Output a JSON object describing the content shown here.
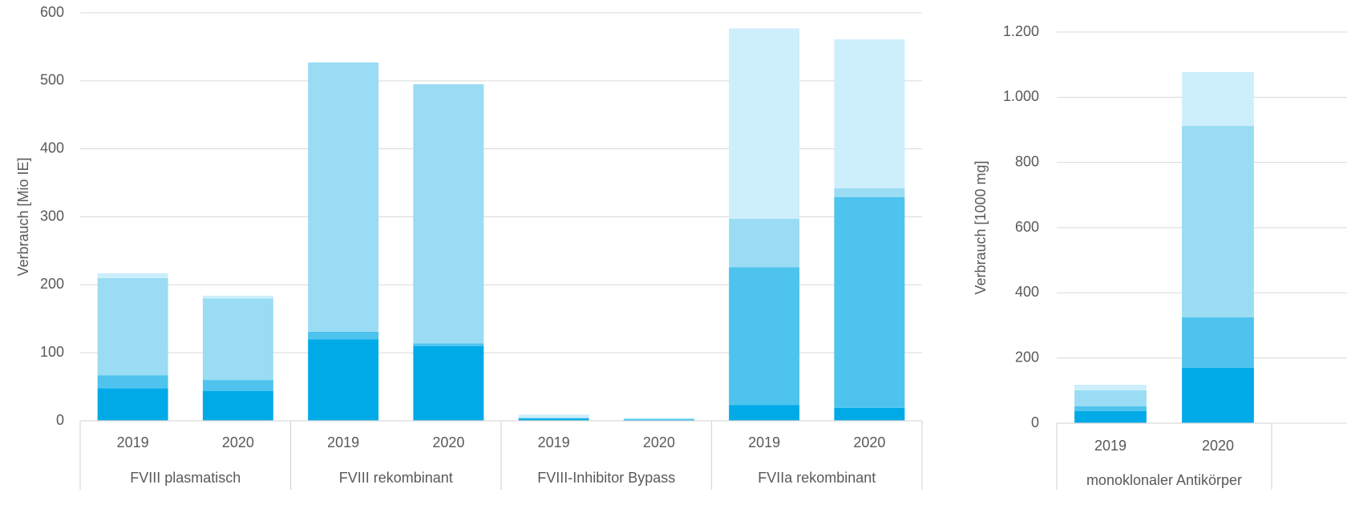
{
  "chart_data": [
    {
      "type": "bar",
      "stacked": true,
      "ylabel": "Verbrauch [Mio IE]",
      "categories": [
        "2019",
        "2020",
        "2019",
        "2020",
        "2019",
        "2020",
        "2019",
        "2020"
      ],
      "groups": [
        "FVIII plasmatisch",
        "FVIII rekombinant",
        "FVIII-Inhibitor Bypass",
        "FVIIa rekombinant"
      ],
      "series": [
        {
          "color": "#00aae7",
          "values": [
            48,
            44,
            120,
            110,
            3,
            2,
            23,
            19
          ]
        },
        {
          "color": "#4dc3ee",
          "values": [
            19,
            16,
            11,
            4,
            1,
            0,
            203,
            310
          ]
        },
        {
          "color": "#99dcf4",
          "values": [
            143,
            120,
            396,
            381,
            1,
            1,
            71,
            13
          ]
        },
        {
          "color": "#cdeefb",
          "values": [
            7,
            4,
            0,
            0,
            4,
            1,
            280,
            219
          ]
        }
      ],
      "ylim": [
        0,
        600
      ],
      "yticks": [
        0,
        100,
        200,
        300,
        400,
        500,
        600
      ],
      "grid": true
    },
    {
      "type": "bar",
      "stacked": true,
      "ylabel": "Verbrauch [1000 mg]",
      "categories": [
        "2019",
        "2020"
      ],
      "groups": [
        "monoklonaler Antikörper"
      ],
      "series": [
        {
          "color": "#00aae7",
          "values": [
            37,
            170
          ]
        },
        {
          "color": "#4dc3ee",
          "values": [
            15,
            155
          ]
        },
        {
          "color": "#99dcf4",
          "values": [
            49,
            587
          ]
        },
        {
          "color": "#cdeefb",
          "values": [
            17,
            165
          ]
        }
      ],
      "ylim": [
        0,
        1200
      ],
      "yticks": [
        0,
        200,
        400,
        600,
        800,
        {
          "value": 1000,
          "label": "1.000"
        },
        {
          "value": 1200,
          "label": "1.200"
        }
      ],
      "grid": true
    }
  ]
}
